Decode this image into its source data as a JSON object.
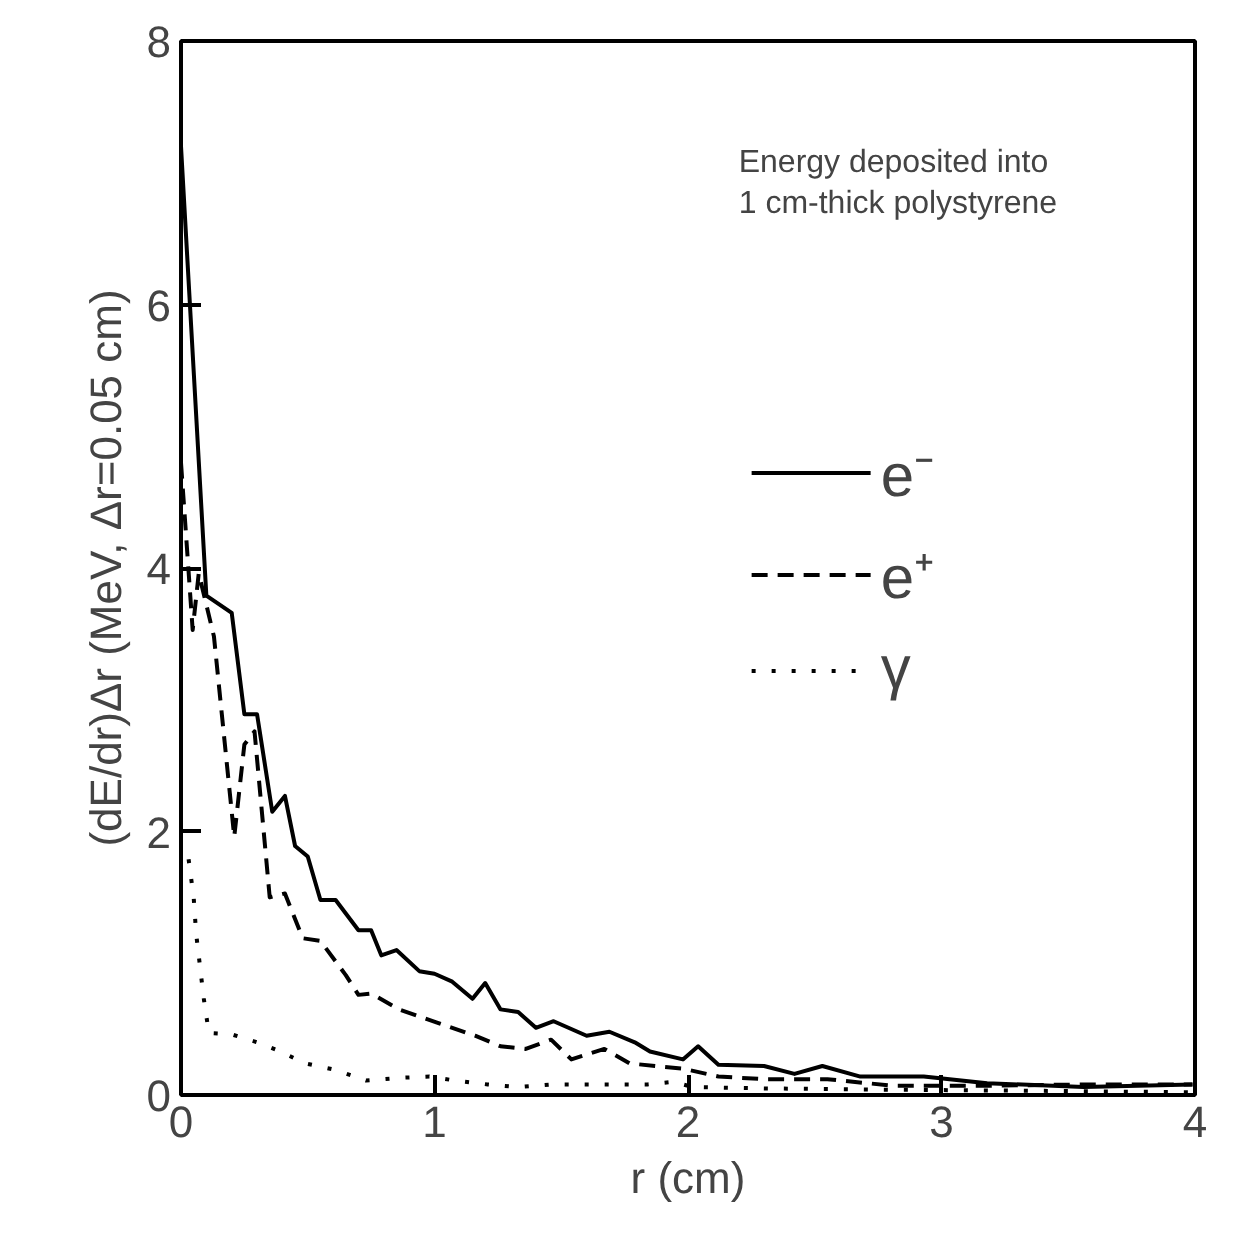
{
  "chart_data": {
    "type": "line",
    "xlabel": "r (cm)",
    "ylabel": "(dE/dr)Δr (MeV, Δr=0.05 cm)",
    "annotations": [
      "Energy deposited into\n1 cm-thick polystyrene"
    ],
    "xlim": [
      0,
      4
    ],
    "ylim": [
      0,
      8
    ],
    "xticks": [
      0,
      1,
      2,
      3,
      4
    ],
    "yticks": [
      0,
      2,
      4,
      6,
      8
    ],
    "grid": false,
    "legend": "right",
    "series": [
      {
        "name": "e⁻",
        "color": "#000000",
        "line_style": "solid",
        "x": [
          0.0,
          0.1,
          0.2,
          0.25,
          0.3,
          0.36,
          0.41,
          0.45,
          0.5,
          0.55,
          0.61,
          0.7,
          0.75,
          0.79,
          0.85,
          0.94,
          1.0,
          1.07,
          1.15,
          1.2,
          1.26,
          1.33,
          1.4,
          1.47,
          1.6,
          1.69,
          1.79,
          1.85,
          1.98,
          2.04,
          2.12,
          2.3,
          2.42,
          2.53,
          2.68,
          2.93,
          3.18,
          3.56,
          3.99
        ],
        "values": [
          7.2,
          3.79,
          3.66,
          2.89,
          2.89,
          2.15,
          2.27,
          1.89,
          1.81,
          1.48,
          1.48,
          1.25,
          1.25,
          1.06,
          1.1,
          0.94,
          0.92,
          0.86,
          0.73,
          0.85,
          0.65,
          0.63,
          0.51,
          0.56,
          0.45,
          0.48,
          0.4,
          0.33,
          0.27,
          0.37,
          0.23,
          0.22,
          0.16,
          0.22,
          0.14,
          0.14,
          0.09,
          0.06,
          0.08
        ]
      },
      {
        "name": "e⁺",
        "color": "#000000",
        "line_style": "dashed",
        "x": [
          0.0,
          0.046,
          0.07,
          0.13,
          0.21,
          0.25,
          0.29,
          0.35,
          0.41,
          0.48,
          0.55,
          0.65,
          0.7,
          0.75,
          0.86,
          1.01,
          1.16,
          1.26,
          1.36,
          1.46,
          1.54,
          1.67,
          1.77,
          1.87,
          1.98,
          2.12,
          2.3,
          2.55,
          2.81,
          3.18,
          3.56,
          3.99
        ],
        "values": [
          4.8,
          3.53,
          3.96,
          3.48,
          1.96,
          2.66,
          2.76,
          1.5,
          1.53,
          1.19,
          1.17,
          0.91,
          0.76,
          0.77,
          0.65,
          0.55,
          0.45,
          0.37,
          0.35,
          0.42,
          0.27,
          0.35,
          0.24,
          0.22,
          0.2,
          0.14,
          0.12,
          0.12,
          0.07,
          0.07,
          0.08,
          0.08
        ]
      },
      {
        "name": "γ",
        "color": "#000000",
        "line_style": "dotted",
        "x": [
          0.03,
          0.05,
          0.06,
          0.09,
          0.11,
          0.2,
          0.3,
          0.38,
          0.49,
          0.61,
          0.73,
          0.86,
          0.98,
          1.08,
          1.21,
          1.33,
          1.46,
          1.58,
          1.71,
          1.84,
          1.94,
          2.02,
          2.3,
          2.8,
          3.5,
          4.0
        ],
        "values": [
          1.79,
          1.5,
          1.22,
          0.73,
          0.47,
          0.46,
          0.4,
          0.34,
          0.24,
          0.19,
          0.11,
          0.13,
          0.14,
          0.11,
          0.08,
          0.06,
          0.08,
          0.08,
          0.08,
          0.08,
          0.1,
          0.06,
          0.05,
          0.04,
          0.03,
          0.02
        ]
      }
    ]
  }
}
